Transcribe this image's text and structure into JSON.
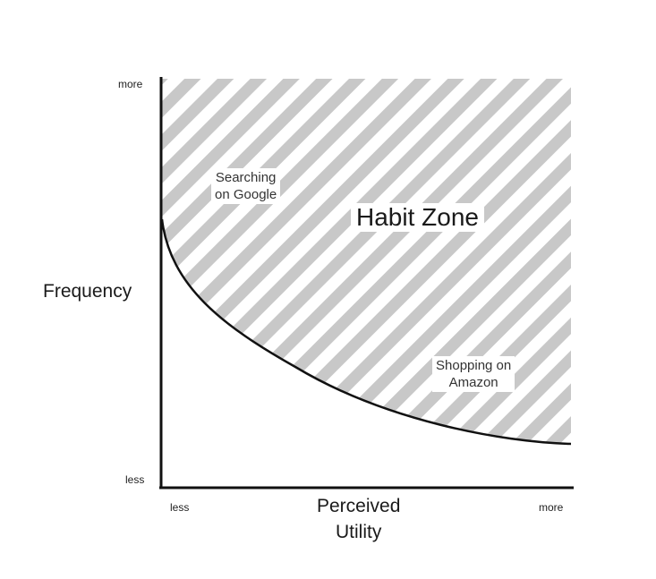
{
  "y_axis": {
    "title": "Frequency",
    "tick_top": "more",
    "tick_bottom": "less"
  },
  "x_axis": {
    "title_line1": "Perceived",
    "title_line2": "Utility",
    "tick_left": "less",
    "tick_right": "more"
  },
  "regions": {
    "habit_zone": "Habit Zone",
    "google_line1": "Searching",
    "google_line2": "on Google",
    "amazon_line1": "Shopping on",
    "amazon_line2": "Amazon"
  },
  "colors": {
    "stripe": "#c8c8c8",
    "axis": "#111111",
    "curve": "#111111",
    "background": "#ffffff"
  }
}
